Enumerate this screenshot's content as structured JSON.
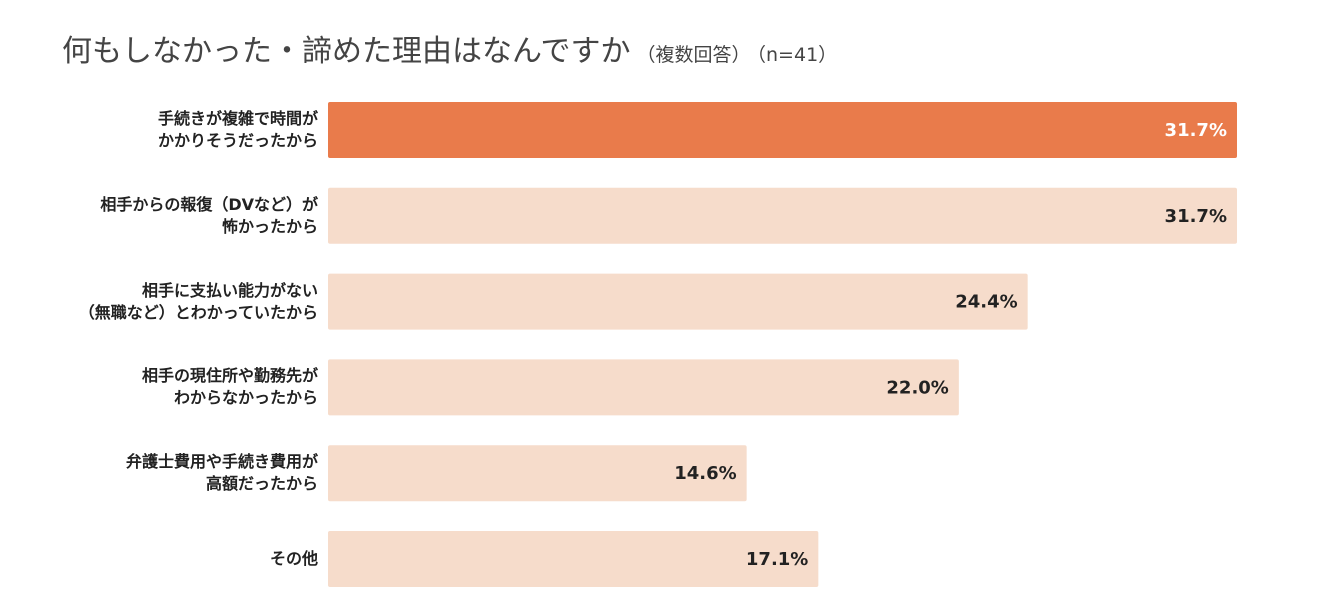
{
  "chart_data": {
    "type": "bar",
    "orientation": "horizontal",
    "title": "何もしなかった・諦めた理由はなんですか",
    "subtitle": "（複数回答）",
    "note": "（n=41）",
    "categories": [
      "手続きが複雑で時間が\nかかりそうだったから",
      "相手からの報復（DVなど）が\n怖かったから",
      "相手に支払い能力がない\n（無職など）とわかっていたから",
      "相手の現住所や勤務先が\nわからなかったから",
      "弁護士費用や手続き費用が\n高額だったから",
      "その他"
    ],
    "values": [
      31.7,
      31.7,
      24.4,
      22.0,
      14.6,
      17.1
    ],
    "value_labels": [
      "31.7%",
      "31.7%",
      "24.4%",
      "22.0%",
      "14.6%",
      "17.1%"
    ],
    "colors": [
      "#e97b4b",
      "#f6dccb",
      "#f6dccb",
      "#f6dccb",
      "#f6dccb",
      "#f6dccb"
    ],
    "label_colors": [
      "#ffffff",
      "#222222",
      "#222222",
      "#222222",
      "#222222",
      "#222222"
    ]
  }
}
